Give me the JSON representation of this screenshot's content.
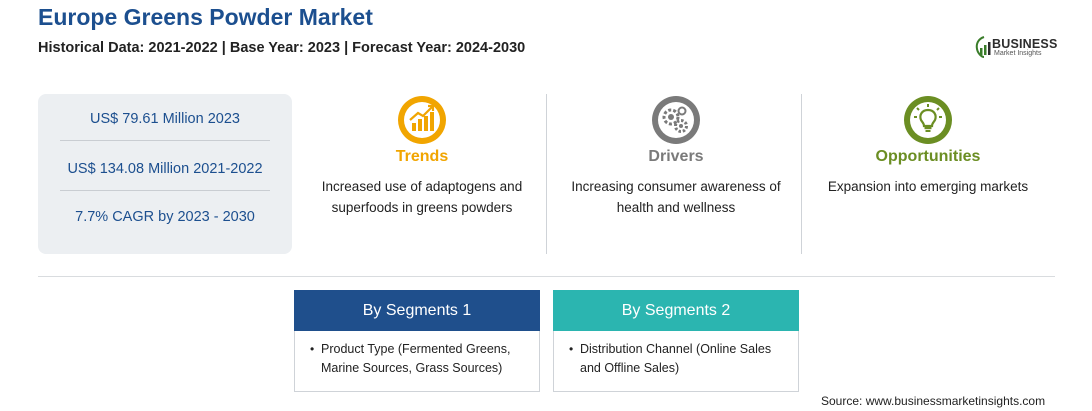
{
  "header": {
    "title": "Europe Greens Powder Market",
    "subtitle": "Historical Data: 2021-2022 | Base Year: 2023 | Forecast Year: 2024-2030"
  },
  "logo": {
    "name": "BUSINESS",
    "tagline": "Market Insights"
  },
  "stats": [
    "US$ 79.61 Million 2023",
    "US$ 134.08 Million 2021-2022",
    "7.7% CAGR by 2023 - 2030"
  ],
  "columns": [
    {
      "heading": "Trends",
      "text": "Increased use of adaptogens and superfoods in greens powders",
      "color": "#f1a500",
      "icon": "chart-growth-icon"
    },
    {
      "heading": "Drivers",
      "text": "Increasing consumer awareness of health and wellness",
      "color": "#7a7a7a",
      "icon": "gears-icon"
    },
    {
      "heading": "Opportunities",
      "text": "Expansion into emerging markets",
      "color": "#6b8e23",
      "icon": "lightbulb-icon"
    }
  ],
  "segments": [
    {
      "heading": "By Segments 1",
      "item": "Product Type (Fermented Greens, Marine Sources, Grass Sources)",
      "color": "#1f4f8c"
    },
    {
      "heading": "By Segments 2",
      "item": "Distribution Channel (Online Sales and Offline Sales)",
      "color": "#2bb5b0"
    }
  ],
  "source": "Source: www.businessmarketinsights.com"
}
